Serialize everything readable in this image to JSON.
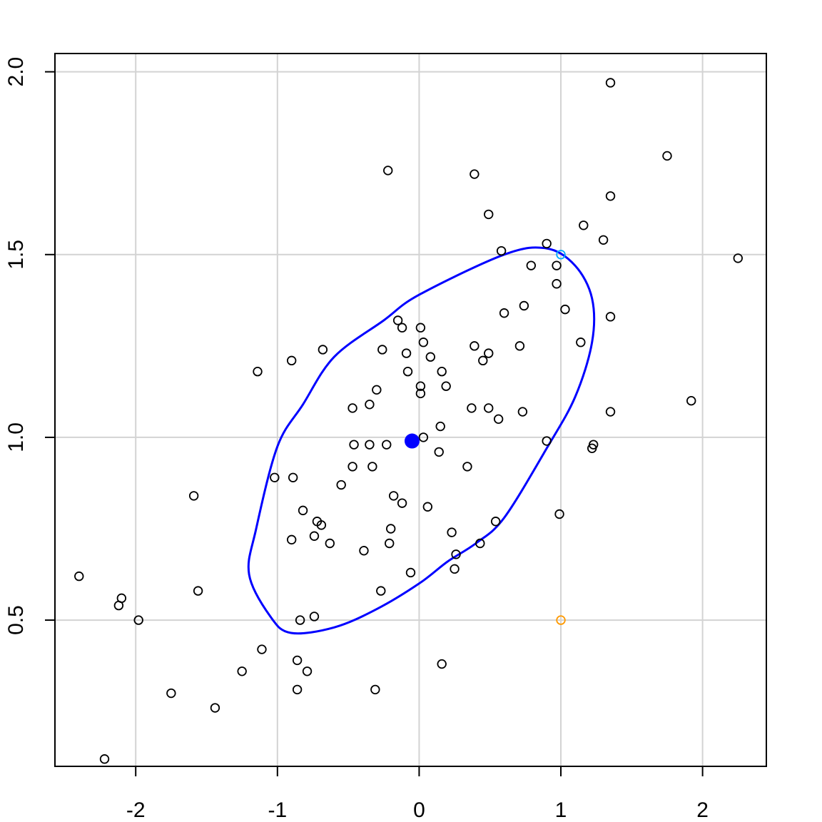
{
  "chart_data": {
    "type": "scatter",
    "title": "",
    "xlabel": "",
    "ylabel": "",
    "xlim": [
      -2.57,
      2.45
    ],
    "ylim": [
      0.1,
      2.05
    ],
    "grid": true,
    "x_ticks": [
      -2,
      -1,
      0,
      1,
      2
    ],
    "y_ticks": [
      0.5,
      1.0,
      1.5,
      2.0
    ],
    "x_tick_labels": [
      "-2",
      "-1",
      "0",
      "1",
      "2"
    ],
    "y_tick_labels": [
      "0.5",
      "1.0",
      "1.5",
      "2.0"
    ],
    "colors": {
      "points": "#000000",
      "grid": "#d3d3d3",
      "ellipse": "#0000ff",
      "center": "#0000ff",
      "highlight_a": "#00aaff",
      "highlight_b": "#ff9900"
    },
    "center": {
      "x": -0.05,
      "y": 0.99
    },
    "ellipse": [
      [
        -0.905,
        0.465
      ],
      [
        -1.05,
        0.51
      ],
      [
        -1.2,
        0.625
      ],
      [
        -1.15,
        0.75
      ],
      [
        -1.0,
        0.975
      ],
      [
        -0.82,
        1.09
      ],
      [
        -0.6,
        1.22
      ],
      [
        -0.25,
        1.32
      ],
      [
        0.0,
        1.39
      ],
      [
        0.6,
        1.5
      ],
      [
        0.9,
        1.517
      ],
      [
        1.1,
        1.47
      ],
      [
        1.22,
        1.38
      ],
      [
        1.22,
        1.26
      ],
      [
        1.1,
        1.11
      ],
      [
        0.9,
        0.97
      ],
      [
        0.6,
        0.78
      ],
      [
        0.4,
        0.71
      ],
      [
        0.2,
        0.66
      ],
      [
        0.0,
        0.6
      ],
      [
        -0.3,
        0.53
      ],
      [
        -0.6,
        0.48
      ],
      [
        -0.905,
        0.465
      ]
    ],
    "highlight_points": [
      {
        "x": 1.0,
        "y": 1.5,
        "color": "#00aaff"
      },
      {
        "x": 1.0,
        "y": 0.5,
        "color": "#ff9900"
      }
    ],
    "series": [
      {
        "points": [
          [
            1.35,
            1.97
          ],
          [
            1.75,
            1.77
          ],
          [
            -0.22,
            1.73
          ],
          [
            0.39,
            1.72
          ],
          [
            1.35,
            1.66
          ],
          [
            0.49,
            1.61
          ],
          [
            1.16,
            1.58
          ],
          [
            1.3,
            1.54
          ],
          [
            0.9,
            1.53
          ],
          [
            0.58,
            1.51
          ],
          [
            0.79,
            1.47
          ],
          [
            0.97,
            1.47
          ],
          [
            0.97,
            1.42
          ],
          [
            2.25,
            1.49
          ],
          [
            1.03,
            1.35
          ],
          [
            0.6,
            1.34
          ],
          [
            0.74,
            1.36
          ],
          [
            1.35,
            1.33
          ],
          [
            -0.15,
            1.32
          ],
          [
            0.01,
            1.3
          ],
          [
            -0.12,
            1.3
          ],
          [
            0.03,
            1.26
          ],
          [
            0.39,
            1.25
          ],
          [
            0.71,
            1.25
          ],
          [
            1.14,
            1.26
          ],
          [
            -0.26,
            1.24
          ],
          [
            -0.68,
            1.24
          ],
          [
            -0.09,
            1.23
          ],
          [
            0.08,
            1.22
          ],
          [
            0.49,
            1.23
          ],
          [
            0.45,
            1.21
          ],
          [
            -0.9,
            1.21
          ],
          [
            0.16,
            1.18
          ],
          [
            -0.08,
            1.18
          ],
          [
            -1.14,
            1.18
          ],
          [
            0.01,
            1.14
          ],
          [
            0.19,
            1.14
          ],
          [
            -0.3,
            1.13
          ],
          [
            0.01,
            1.12
          ],
          [
            -0.35,
            1.09
          ],
          [
            -0.47,
            1.08
          ],
          [
            0.37,
            1.08
          ],
          [
            0.49,
            1.08
          ],
          [
            0.56,
            1.05
          ],
          [
            0.73,
            1.07
          ],
          [
            1.35,
            1.07
          ],
          [
            1.92,
            1.1
          ],
          [
            0.15,
            1.03
          ],
          [
            0.03,
            1.0
          ],
          [
            -0.23,
            0.98
          ],
          [
            -0.35,
            0.98
          ],
          [
            -0.46,
            0.98
          ],
          [
            0.9,
            0.99
          ],
          [
            1.22,
            0.97
          ],
          [
            1.23,
            0.98
          ],
          [
            0.14,
            0.96
          ],
          [
            0.34,
            0.92
          ],
          [
            -0.33,
            0.92
          ],
          [
            -0.47,
            0.92
          ],
          [
            -0.55,
            0.87
          ],
          [
            -1.02,
            0.89
          ],
          [
            -0.89,
            0.89
          ],
          [
            -1.59,
            0.84
          ],
          [
            -0.18,
            0.84
          ],
          [
            -0.12,
            0.82
          ],
          [
            0.06,
            0.81
          ],
          [
            -0.82,
            0.8
          ],
          [
            -0.72,
            0.77
          ],
          [
            -0.69,
            0.76
          ],
          [
            -0.2,
            0.75
          ],
          [
            0.54,
            0.77
          ],
          [
            0.99,
            0.79
          ],
          [
            -0.74,
            0.73
          ],
          [
            0.23,
            0.74
          ],
          [
            -0.9,
            0.72
          ],
          [
            -0.21,
            0.71
          ],
          [
            -0.63,
            0.71
          ],
          [
            0.43,
            0.71
          ],
          [
            -0.39,
            0.69
          ],
          [
            0.26,
            0.68
          ],
          [
            0.25,
            0.64
          ],
          [
            -0.06,
            0.63
          ],
          [
            -2.4,
            0.62
          ],
          [
            -2.1,
            0.56
          ],
          [
            -2.12,
            0.54
          ],
          [
            -1.56,
            0.58
          ],
          [
            -0.27,
            0.58
          ],
          [
            -1.98,
            0.5
          ],
          [
            -0.84,
            0.5
          ],
          [
            -0.74,
            0.51
          ],
          [
            -1.11,
            0.42
          ],
          [
            -0.86,
            0.39
          ],
          [
            -1.25,
            0.36
          ],
          [
            -0.79,
            0.36
          ],
          [
            0.16,
            0.38
          ],
          [
            -1.75,
            0.3
          ],
          [
            -0.86,
            0.31
          ],
          [
            -0.31,
            0.31
          ],
          [
            -1.44,
            0.26
          ],
          [
            -2.22,
            0.12
          ]
        ]
      }
    ]
  }
}
